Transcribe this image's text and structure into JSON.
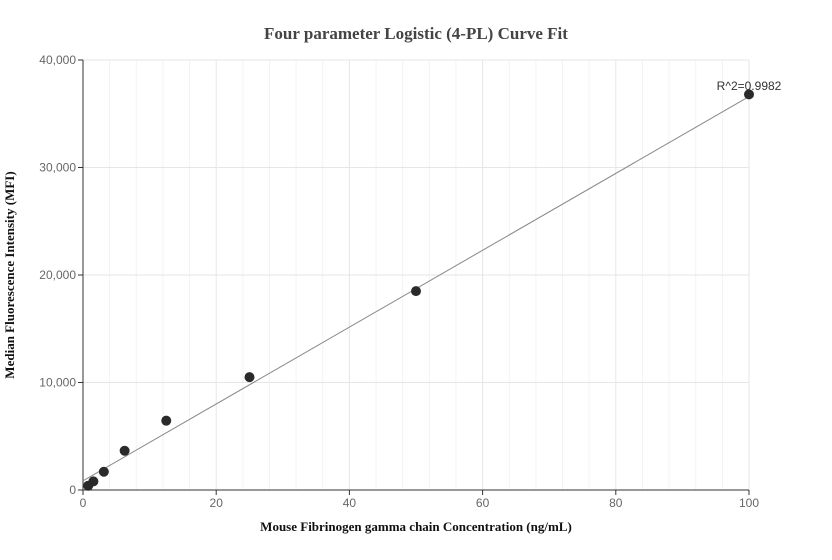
{
  "chart_data": {
    "type": "scatter",
    "title": "Four parameter Logistic (4-PL) Curve Fit",
    "xlabel": "Mouse Fibrinogen gamma chain Concentration (ng/mL)",
    "ylabel": "Median Fluorescence Intensity (MFI)",
    "xlim": [
      0,
      100
    ],
    "ylim": [
      0,
      40000
    ],
    "x_ticks": [
      0,
      20,
      40,
      60,
      80,
      100
    ],
    "y_ticks": [
      0,
      10000,
      20000,
      30000,
      40000
    ],
    "x_tick_labels": [
      "0",
      "20",
      "40",
      "60",
      "80",
      "100"
    ],
    "y_tick_labels": [
      "0",
      "10,000",
      "20,000",
      "30,000",
      "40,000"
    ],
    "grid": true,
    "series": [
      {
        "x": [
          0.78,
          1.56,
          3.13,
          6.25,
          12.5,
          25,
          50,
          100
        ],
        "y": [
          400,
          800,
          1700,
          3650,
          6450,
          10500,
          18500,
          36800
        ]
      }
    ],
    "fit_line": {
      "x": [
        0,
        100
      ],
      "y": [
        850,
        36600
      ]
    },
    "annotation": "R^2=0.9982",
    "colors": {
      "points": "#2a2a2a",
      "fit_line": "#888888",
      "grid_major": "#e6e6e6",
      "grid_minor": "#f3f3f3",
      "axis": "#333333"
    }
  }
}
